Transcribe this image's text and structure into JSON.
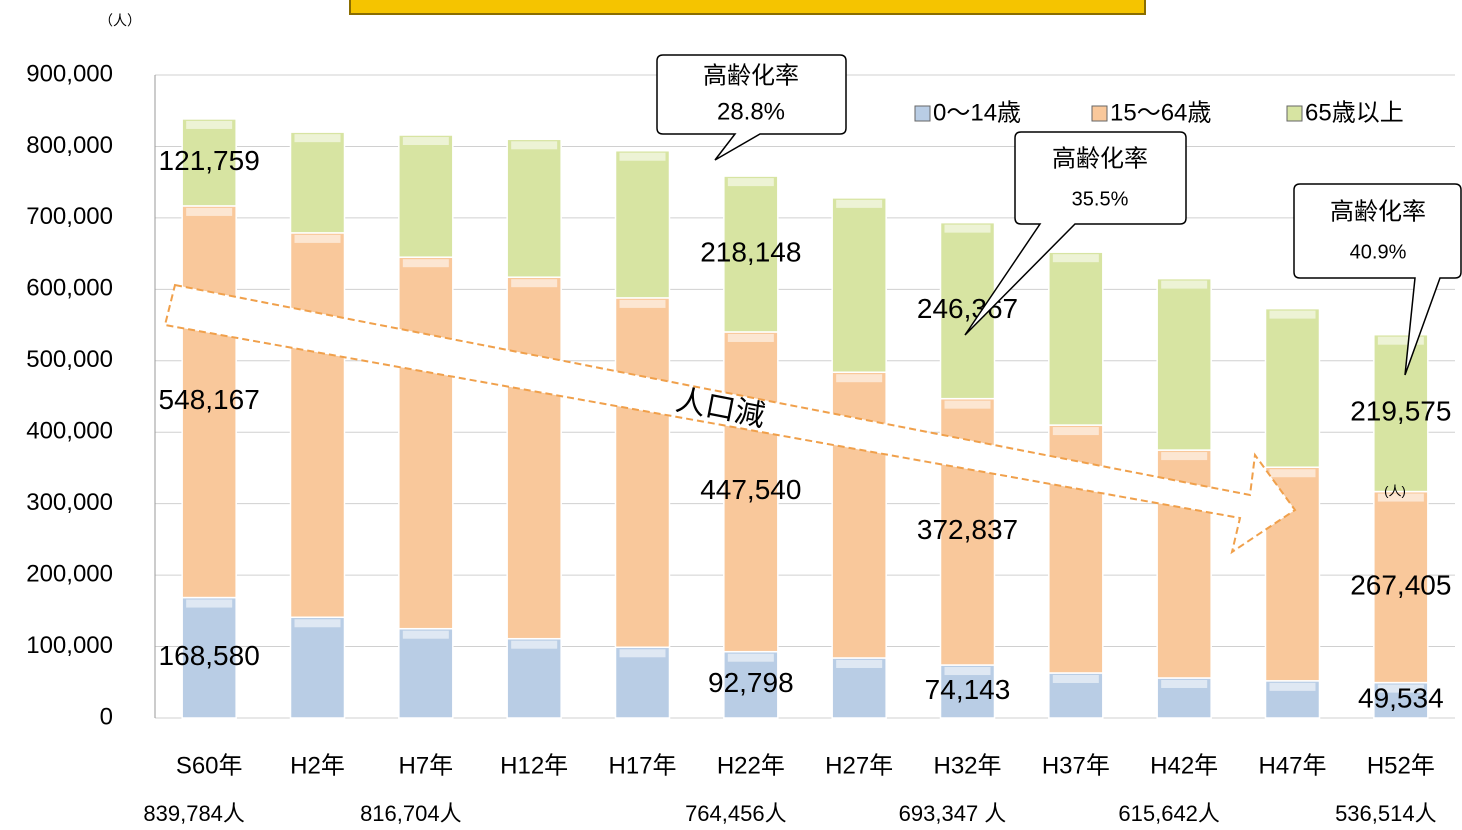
{
  "chart_data": {
    "type": "stacked_bar",
    "unit_label": "（人）",
    "categories": [
      "S60年",
      "H2年",
      "H7年",
      "H12年",
      "H17年",
      "H22年",
      "H27年",
      "H32年",
      "H37年",
      "H42年",
      "H47年",
      "H52年"
    ],
    "series": [
      {
        "name": "0〜14歳",
        "color": "#b9cde5",
        "values": [
          168580,
          141000,
          125000,
          111000,
          99000,
          92798,
          84000,
          74143,
          63000,
          56000,
          52000,
          49534
        ],
        "value_labels": [
          "168,580",
          null,
          null,
          null,
          null,
          "92,798",
          null,
          "74,143",
          null,
          null,
          null,
          "49,534"
        ]
      },
      {
        "name": "15〜64歳",
        "color": "#f9c89b",
        "values": [
          548167,
          538000,
          520000,
          506000,
          489000,
          447540,
          400000,
          372837,
          347000,
          319000,
          299000,
          267405
        ],
        "value_labels": [
          "548,167",
          null,
          null,
          null,
          null,
          "447,540",
          null,
          "372,837",
          null,
          null,
          null,
          "267,405"
        ]
      },
      {
        "name": "65歳以上",
        "color": "#d7e4a2",
        "values": [
          121759,
          141000,
          171000,
          193000,
          206000,
          218148,
          244000,
          246367,
          242000,
          240000,
          222000,
          219575
        ],
        "value_labels": [
          "121,759",
          null,
          null,
          null,
          null,
          "218,148",
          null,
          "246,367",
          null,
          null,
          null,
          "219,575"
        ]
      }
    ],
    "ylim": [
      0,
      900000
    ],
    "yticks": [
      {
        "value": 0,
        "label": "0"
      },
      {
        "value": 100000,
        "label": "100,000"
      },
      {
        "value": 200000,
        "label": "200,000"
      },
      {
        "value": 300000,
        "label": "300,000"
      },
      {
        "value": 400000,
        "label": "400,000"
      },
      {
        "value": 500000,
        "label": "500,000"
      },
      {
        "value": 600000,
        "label": "600,000"
      },
      {
        "value": 700000,
        "label": "700,000"
      },
      {
        "value": 800000,
        "label": "800,000"
      },
      {
        "value": 900000,
        "label": "900,000"
      }
    ],
    "grid": true,
    "legend": "top-right",
    "total_labels": [
      "839,784人",
      "816,704人",
      "764,456人",
      "693,347 人",
      "615,642人",
      "536,514人"
    ],
    "callouts": [
      {
        "title": "高齢化率",
        "text": "28.8%"
      },
      {
        "title": "高齢化率",
        "text": "35.5%"
      },
      {
        "title": "高齢化率",
        "text": "40.9%"
      }
    ],
    "arrow_label": "人口減",
    "unit_label_2": "(人)"
  }
}
